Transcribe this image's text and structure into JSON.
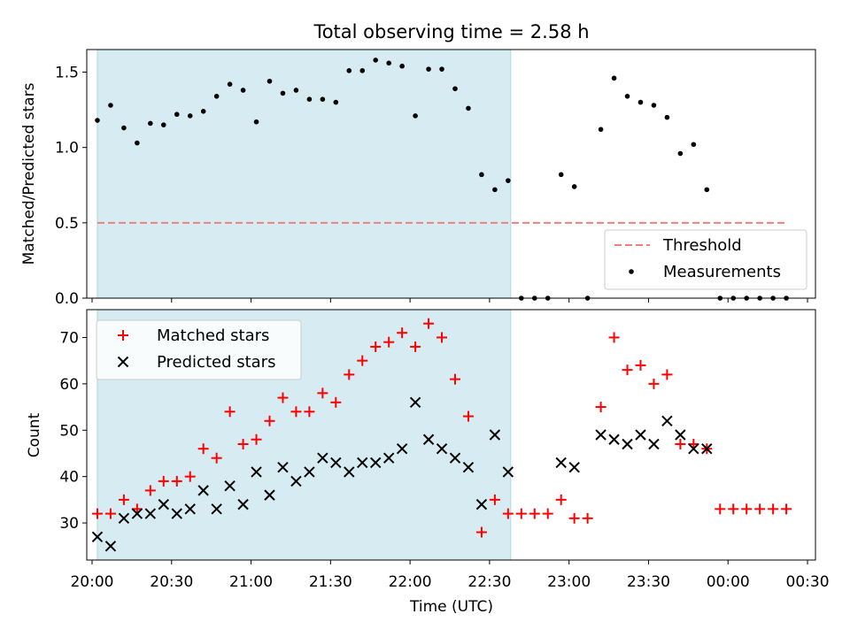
{
  "colors": {
    "shade": "#add8e6",
    "threshold": "#f08080",
    "measurement": "#000000",
    "matched": "#ff0000",
    "predicted": "#000000"
  },
  "chart_data": [
    {
      "type": "scatter",
      "title": "Total observing time = 2.58 h",
      "ylabel": "Matched/Predicted stars",
      "xlabel": "",
      "x_axis": "time (UTC)",
      "ylim": [
        0,
        1.65
      ],
      "xlim": [
        "19:58",
        "00:33"
      ],
      "grid": false,
      "legend_position": "lower right",
      "yticks": [
        "0.0",
        "0.5",
        "1.0",
        "1.5"
      ],
      "shaded_region": [
        "20:02",
        "22:38"
      ],
      "threshold": {
        "name": "Threshold",
        "value": 0.5,
        "x": [
          "20:02",
          "00:22"
        ],
        "style": "dashed"
      },
      "series": [
        {
          "name": "Measurements",
          "marker": "dot",
          "x": [
            "20:02",
            "20:07",
            "20:12",
            "20:17",
            "20:22",
            "20:27",
            "20:32",
            "20:37",
            "20:42",
            "20:47",
            "20:52",
            "20:57",
            "21:02",
            "21:07",
            "21:12",
            "21:17",
            "21:22",
            "21:27",
            "21:32",
            "21:37",
            "21:42",
            "21:47",
            "21:52",
            "21:57",
            "22:02",
            "22:07",
            "22:12",
            "22:17",
            "22:22",
            "22:27",
            "22:32",
            "22:37",
            "22:42",
            "22:47",
            "22:52",
            "22:57",
            "23:02",
            "23:07",
            "23:12",
            "23:17",
            "23:22",
            "23:27",
            "23:32",
            "23:37",
            "23:42",
            "23:47",
            "23:52",
            "23:57",
            "00:02",
            "00:07",
            "00:12",
            "00:17",
            "00:22"
          ],
          "y": [
            1.18,
            1.28,
            1.13,
            1.03,
            1.16,
            1.15,
            1.22,
            1.21,
            1.24,
            1.34,
            1.42,
            1.38,
            1.17,
            1.44,
            1.36,
            1.38,
            1.32,
            1.32,
            1.3,
            1.51,
            1.51,
            1.58,
            1.56,
            1.54,
            1.21,
            1.52,
            1.52,
            1.39,
            1.26,
            0.82,
            0.72,
            0.78,
            0,
            0,
            0,
            0.82,
            0.74,
            0,
            1.12,
            1.46,
            1.34,
            1.3,
            1.28,
            1.2,
            0.96,
            1.02,
            0.72,
            0,
            0,
            0,
            0,
            0,
            0
          ]
        }
      ]
    },
    {
      "type": "scatter",
      "title": "",
      "ylabel": "Count",
      "xlabel": "Time (UTC)",
      "ylim": [
        22,
        76
      ],
      "xlim": [
        "19:58",
        "00:33"
      ],
      "grid": false,
      "legend_position": "upper left",
      "yticks": [
        "30",
        "40",
        "50",
        "60",
        "70"
      ],
      "xticks": [
        "20:00",
        "20:30",
        "21:00",
        "21:30",
        "22:00",
        "22:30",
        "23:00",
        "23:30",
        "00:00",
        "00:30"
      ],
      "shaded_region": [
        "20:02",
        "22:38"
      ],
      "series": [
        {
          "name": "Matched stars",
          "marker": "plus",
          "x": [
            "20:02",
            "20:07",
            "20:12",
            "20:17",
            "20:22",
            "20:27",
            "20:32",
            "20:37",
            "20:42",
            "20:47",
            "20:52",
            "20:57",
            "21:02",
            "21:07",
            "21:12",
            "21:17",
            "21:22",
            "21:27",
            "21:32",
            "21:37",
            "21:42",
            "21:47",
            "21:52",
            "21:57",
            "22:02",
            "22:07",
            "22:12",
            "22:17",
            "22:22",
            "22:27",
            "22:32",
            "22:37",
            "22:42",
            "22:47",
            "22:52",
            "22:57",
            "23:02",
            "23:07",
            "23:12",
            "23:17",
            "23:22",
            "23:27",
            "23:32",
            "23:37",
            "23:42",
            "23:47",
            "23:52",
            "23:57",
            "00:02",
            "00:07",
            "00:12",
            "00:17",
            "00:22"
          ],
          "y": [
            32,
            32,
            35,
            33,
            37,
            39,
            39,
            40,
            46,
            44,
            54,
            47,
            48,
            52,
            57,
            54,
            54,
            58,
            56,
            62,
            65,
            68,
            69,
            71,
            68,
            73,
            70,
            61,
            53,
            28,
            35,
            32,
            32,
            32,
            32,
            35,
            31,
            31,
            55,
            70,
            63,
            64,
            60,
            62,
            47,
            47,
            46,
            33,
            33,
            33,
            33,
            33,
            33
          ]
        },
        {
          "name": "Predicted stars",
          "marker": "x",
          "x": [
            "20:02",
            "20:07",
            "20:12",
            "20:17",
            "20:22",
            "20:27",
            "20:32",
            "20:37",
            "20:42",
            "20:47",
            "20:52",
            "20:57",
            "21:02",
            "21:07",
            "21:12",
            "21:17",
            "21:22",
            "21:27",
            "21:32",
            "21:37",
            "21:42",
            "21:47",
            "21:52",
            "21:57",
            "22:02",
            "22:07",
            "22:12",
            "22:17",
            "22:22",
            "22:27",
            "22:32",
            "22:37",
            "22:57",
            "23:02",
            "23:12",
            "23:17",
            "23:22",
            "23:27",
            "23:32",
            "23:37",
            "23:42",
            "23:47",
            "23:52"
          ],
          "y": [
            27,
            25,
            31,
            32,
            32,
            34,
            32,
            33,
            37,
            33,
            38,
            34,
            41,
            36,
            42,
            39,
            41,
            44,
            43,
            41,
            43,
            43,
            44,
            46,
            56,
            48,
            46,
            44,
            42,
            34,
            49,
            41,
            43,
            42,
            49,
            48,
            47,
            49,
            47,
            52,
            49,
            46,
            46
          ]
        }
      ]
    }
  ]
}
